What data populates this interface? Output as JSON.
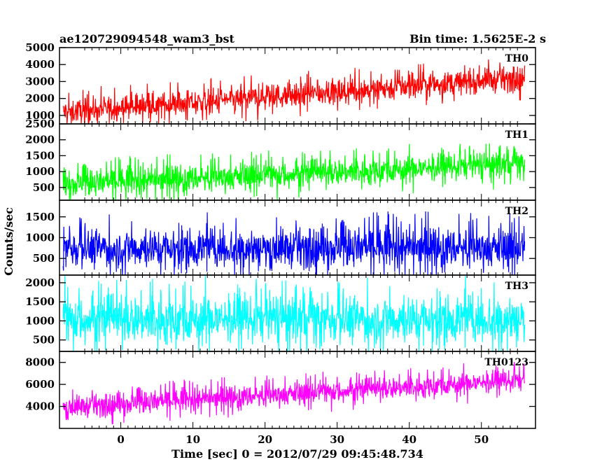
{
  "title_left": "ae120729094548_wam3_bst",
  "title_right": "Bin time: 1.5625E-2 s",
  "chart_data": {
    "type": "line",
    "xlabel": "Time [sec] 0 = 2012/07/29 09:45:48.734",
    "ylabel": "Counts/sec",
    "xlim": [
      -8.5,
      57.5
    ],
    "x_ticks": [
      "0",
      "10",
      "20",
      "30",
      "40",
      "50"
    ],
    "x_tick_values": [
      0,
      10,
      20,
      30,
      40,
      50
    ],
    "x_range_data": [
      -8,
      56
    ],
    "grid": false,
    "panels": [
      {
        "name": "TH0",
        "color": "#ff0000",
        "ylim": [
          500,
          5000
        ],
        "y_ticks": [
          "1000",
          "2000",
          "3000",
          "4000",
          "5000"
        ],
        "y_tick_values": [
          1000,
          2000,
          3000,
          4000,
          5000
        ],
        "trend_start": 1200,
        "trend_end": 3200,
        "spread": 650,
        "max": 5000,
        "min": 500
      },
      {
        "name": "TH1",
        "color": "#00ff00",
        "ylim": [
          100,
          2500
        ],
        "y_ticks": [
          "500",
          "1000",
          "1500",
          "2000",
          "2500"
        ],
        "y_tick_values": [
          500,
          1000,
          1500,
          2000,
          2500
        ],
        "trend_start": 600,
        "trend_end": 1250,
        "spread": 380,
        "max": 2500,
        "min": 100
      },
      {
        "name": "TH2",
        "color": "#0000ff",
        "ylim": [
          100,
          1900
        ],
        "y_ticks": [
          "500",
          "1000",
          "1500"
        ],
        "y_tick_values": [
          500,
          1000,
          1500
        ],
        "trend_start": 750,
        "trend_end": 750,
        "spread": 420,
        "max": 1900,
        "min": 100
      },
      {
        "name": "TH3",
        "color": "#00ffff",
        "ylim": [
          200,
          2200
        ],
        "y_ticks": [
          "500",
          "1000",
          "1500",
          "2000"
        ],
        "y_tick_values": [
          500,
          1000,
          1500,
          2000
        ],
        "trend_start": 1050,
        "trend_end": 1050,
        "spread": 560,
        "max": 2200,
        "min": 200
      },
      {
        "name": "TH0123",
        "color": "#ff00ff",
        "ylim": [
          2000,
          9000
        ],
        "y_ticks": [
          "4000",
          "6000",
          "8000"
        ],
        "y_tick_values": [
          4000,
          6000,
          8000
        ],
        "trend_start": 3900,
        "trend_end": 6400,
        "spread": 900,
        "max": 9000,
        "min": 2000
      }
    ]
  }
}
